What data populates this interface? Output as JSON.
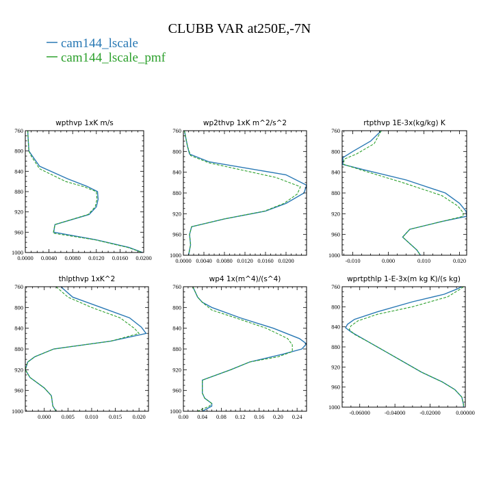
{
  "figure": {
    "title": "CLUBB VAR at250E,-7N",
    "legend": [
      {
        "label": "cam144_lscale",
        "color": "#2878b4",
        "dash": "solid"
      },
      {
        "label": "cam144_lscale_pmf",
        "color": "#2ca02c",
        "dash": "dashed"
      }
    ]
  },
  "chart_data": [
    {
      "type": "line",
      "title": "wpthvp  1xK m/s",
      "xlim": [
        0,
        0.02
      ],
      "xticks": [
        "0.0000",
        "0.0040",
        "0.0080",
        "0.0120",
        "0.0160",
        "0.0200"
      ],
      "xtick_values": [
        0,
        0.004,
        0.008,
        0.012,
        0.016,
        0.02
      ],
      "ylim": [
        760,
        1000
      ],
      "yticks": [
        "760",
        "800",
        "840",
        "880",
        "920",
        "960",
        "1000"
      ],
      "y_inverted": true,
      "series": [
        {
          "name": "cam144_lscale",
          "color": "#2878b4",
          "y": [
            760,
            800,
            810,
            830,
            855,
            870,
            880,
            895,
            910,
            925,
            945,
            960,
            975,
            990,
            1000
          ],
          "x": [
            0.0004,
            0.0006,
            0.0012,
            0.0024,
            0.0072,
            0.0105,
            0.0122,
            0.0123,
            0.012,
            0.0108,
            0.005,
            0.0048,
            0.012,
            0.0175,
            0.0198
          ]
        },
        {
          "name": "cam144_lscale_pmf",
          "color": "#2ca02c",
          "y": [
            760,
            800,
            810,
            835,
            860,
            870,
            880,
            895,
            910,
            925,
            945,
            962,
            975,
            990,
            1000
          ],
          "x": [
            0.0004,
            0.0006,
            0.001,
            0.0024,
            0.0068,
            0.0098,
            0.012,
            0.0121,
            0.0118,
            0.0106,
            0.005,
            0.0047,
            0.0118,
            0.0173,
            0.0198
          ]
        }
      ]
    },
    {
      "type": "line",
      "title": "wp2thvp  1xK m^2/s^2",
      "xlim": [
        0,
        0.024
      ],
      "xticks": [
        "0.0000",
        "0.0040",
        "0.0080",
        "0.0120",
        "0.0160",
        "0.0200"
      ],
      "xtick_values": [
        0,
        0.004,
        0.008,
        0.012,
        0.016,
        0.02
      ],
      "ylim": [
        760,
        1000
      ],
      "yticks": [
        "760",
        "800",
        "840",
        "880",
        "920",
        "960",
        "1000"
      ],
      "y_inverted": true,
      "series": [
        {
          "name": "cam144_lscale",
          "color": "#2878b4",
          "y": [
            760,
            790,
            805,
            820,
            845,
            865,
            880,
            900,
            915,
            930,
            945,
            960,
            980,
            1000
          ],
          "x": [
            0.0002,
            0.0008,
            0.0012,
            0.005,
            0.02,
            0.024,
            0.0235,
            0.02,
            0.016,
            0.008,
            0.0016,
            0.0012,
            0.0014,
            0.001
          ]
        },
        {
          "name": "cam144_lscale_pmf",
          "color": "#2ca02c",
          "y": [
            760,
            790,
            808,
            822,
            850,
            868,
            882,
            900,
            915,
            930,
            945,
            960,
            980,
            1000
          ],
          "x": [
            0.0002,
            0.0008,
            0.0014,
            0.005,
            0.018,
            0.0228,
            0.0222,
            0.0196,
            0.0158,
            0.008,
            0.0016,
            0.0012,
            0.0014,
            0.001
          ]
        }
      ]
    },
    {
      "type": "line",
      "title": "rtpthvp  1E-3x(kg/kg) K",
      "xlim": [
        -0.013,
        0.022
      ],
      "xticks": [
        "-0.010",
        "0.000",
        "0.010",
        "0.020"
      ],
      "xtick_values": [
        -0.01,
        0,
        0.01,
        0.02
      ],
      "ylim": [
        760,
        1000
      ],
      "yticks": [
        "760",
        "800",
        "840",
        "880",
        "920",
        "960",
        "1000"
      ],
      "y_inverted": true,
      "series": [
        {
          "name": "cam144_lscale",
          "color": "#2878b4",
          "y": [
            760,
            780,
            800,
            812,
            825,
            835,
            855,
            880,
            900,
            915,
            925,
            935,
            950,
            965,
            990,
            1000
          ],
          "x": [
            -0.002,
            -0.005,
            -0.01,
            -0.0128,
            -0.0128,
            -0.007,
            0.005,
            0.016,
            0.02,
            0.0218,
            0.022,
            0.015,
            0.006,
            0.004,
            0.008,
            0.009
          ]
        },
        {
          "name": "cam144_lscale_pmf",
          "color": "#2ca02c",
          "y": [
            760,
            785,
            805,
            815,
            825,
            835,
            860,
            885,
            905,
            918,
            925,
            935,
            950,
            965,
            990,
            1000
          ],
          "x": [
            -0.002,
            -0.004,
            -0.009,
            -0.0125,
            -0.0125,
            -0.008,
            0.004,
            0.015,
            0.0195,
            0.021,
            0.021,
            0.015,
            0.006,
            0.004,
            0.008,
            0.009
          ]
        }
      ]
    },
    {
      "type": "line",
      "title": "thlpthvp  1xK^2",
      "xlim": [
        -0.004,
        0.022
      ],
      "xticks": [
        "0.000",
        "0.005",
        "0.010",
        "0.015",
        "0.020"
      ],
      "xtick_values": [
        0,
        0.005,
        0.01,
        0.015,
        0.02
      ],
      "ylim": [
        760,
        1000
      ],
      "yticks": [
        "760",
        "800",
        "840",
        "880",
        "920",
        "960",
        "1000"
      ],
      "y_inverted": true,
      "series": [
        {
          "name": "cam144_lscale",
          "color": "#2878b4",
          "y": [
            760,
            780,
            800,
            820,
            838,
            850,
            865,
            880,
            895,
            905,
            920,
            935,
            955,
            970,
            990,
            1000
          ],
          "x": [
            0.0035,
            0.006,
            0.012,
            0.018,
            0.0205,
            0.0215,
            0.014,
            0.002,
            -0.002,
            -0.0035,
            -0.004,
            -0.003,
            0.0,
            0.0015,
            0.0018,
            0.0025
          ]
        },
        {
          "name": "cam144_lscale_pmf",
          "color": "#2ca02c",
          "y": [
            760,
            780,
            800,
            820,
            840,
            850,
            865,
            880,
            895,
            905,
            920,
            935,
            955,
            970,
            990,
            1000
          ],
          "x": [
            0.0025,
            0.005,
            0.01,
            0.016,
            0.019,
            0.02,
            0.014,
            0.002,
            -0.002,
            -0.0035,
            -0.004,
            -0.003,
            0.0,
            0.0015,
            0.0018,
            0.0025
          ]
        }
      ]
    },
    {
      "type": "line",
      "title": "wp4  1x(m^4)/(s^4)",
      "xlim": [
        0,
        0.26
      ],
      "xticks": [
        "0.00",
        "0.04",
        "0.08",
        "0.12",
        "0.16",
        "0.20",
        "0.24"
      ],
      "xtick_values": [
        0,
        0.04,
        0.08,
        0.12,
        0.16,
        0.2,
        0.24
      ],
      "ylim": [
        760,
        1000
      ],
      "yticks": [
        "760",
        "800",
        "840",
        "880",
        "920",
        "960",
        "1000"
      ],
      "y_inverted": true,
      "series": [
        {
          "name": "cam144_lscale",
          "color": "#2878b4",
          "y": [
            760,
            780,
            790,
            800,
            820,
            840,
            860,
            870,
            880,
            890,
            905,
            920,
            940,
            955,
            965,
            975,
            985,
            990,
            1000
          ],
          "x": [
            0.02,
            0.03,
            0.04,
            0.06,
            0.12,
            0.19,
            0.245,
            0.26,
            0.25,
            0.21,
            0.14,
            0.1,
            0.04,
            0.04,
            0.04,
            0.045,
            0.06,
            0.06,
            0.04
          ]
        },
        {
          "name": "cam144_lscale_pmf",
          "color": "#2ca02c",
          "y": [
            760,
            780,
            790,
            805,
            820,
            840,
            860,
            872,
            885,
            895,
            905,
            920,
            940,
            955,
            965,
            975,
            985,
            990,
            1000
          ],
          "x": [
            0.02,
            0.03,
            0.04,
            0.06,
            0.11,
            0.175,
            0.22,
            0.23,
            0.23,
            0.2,
            0.14,
            0.1,
            0.04,
            0.04,
            0.04,
            0.045,
            0.06,
            0.055,
            0.03
          ]
        }
      ]
    },
    {
      "type": "line",
      "title": "wprtpthlp  1-E-3x(m kg K)/(s kg)",
      "xlim": [
        -0.07,
        0
      ],
      "xticks": [
        "-0.06000",
        "-0.04000",
        "-0.02000",
        "0.00000"
      ],
      "xtick_values": [
        -0.06,
        -0.04,
        -0.02,
        0
      ],
      "ylim": [
        760,
        1000
      ],
      "yticks": [
        "760",
        "800",
        "840",
        "880",
        "920",
        "960",
        "1000"
      ],
      "y_inverted": true,
      "series": [
        {
          "name": "cam144_lscale",
          "color": "#2878b4",
          "y": [
            760,
            765,
            775,
            790,
            810,
            825,
            835,
            842,
            850,
            870,
            890,
            910,
            930,
            950,
            965,
            980,
            995,
            1000
          ],
          "x": [
            -0.002,
            -0.005,
            -0.012,
            -0.03,
            -0.05,
            -0.063,
            -0.067,
            -0.068,
            -0.065,
            -0.055,
            -0.045,
            -0.035,
            -0.025,
            -0.013,
            -0.006,
            -0.002,
            -0.001,
            -0.001
          ]
        },
        {
          "name": "cam144_lscale_pmf",
          "color": "#2ca02c",
          "y": [
            760,
            765,
            780,
            800,
            815,
            828,
            838,
            845,
            855,
            870,
            890,
            910,
            930,
            950,
            965,
            980,
            995,
            1000
          ],
          "x": [
            -0.001,
            -0.003,
            -0.01,
            -0.03,
            -0.05,
            -0.061,
            -0.065,
            -0.066,
            -0.063,
            -0.055,
            -0.045,
            -0.035,
            -0.025,
            -0.013,
            -0.006,
            -0.002,
            -0.001,
            -0.001
          ]
        }
      ]
    }
  ]
}
